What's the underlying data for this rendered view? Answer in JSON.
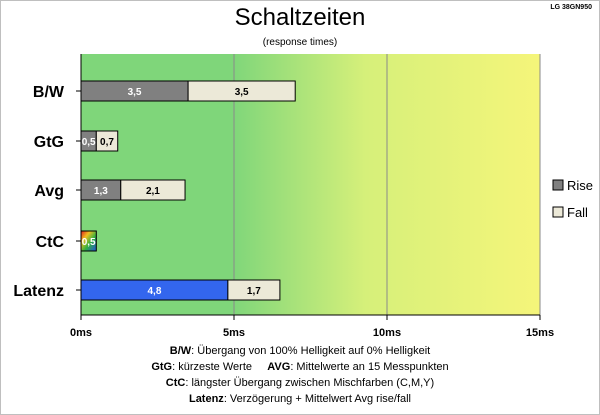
{
  "header": {
    "title": "Schaltzeiten",
    "subtitle": "(response times)",
    "model": "LG 38GN950"
  },
  "colors": {
    "rise": "#808080",
    "fall": "#ece9d8",
    "latency": "#3366ee",
    "grad_start": "#7fd67a",
    "grad_mid": "#d6f07a",
    "grad_end": "#f5f57a"
  },
  "chart_data": {
    "type": "bar",
    "orientation": "horizontal",
    "stacked": true,
    "categories": [
      "B/W",
      "GtG",
      "Avg",
      "CtC",
      "Latenz"
    ],
    "series": [
      {
        "name": "Rise",
        "values": [
          3.5,
          0.5,
          1.3,
          0.5,
          4.8
        ],
        "labels": [
          "3,5",
          "0,5",
          "1,3",
          "0,5",
          "4,8"
        ]
      },
      {
        "name": "Fall",
        "values": [
          3.5,
          0.7,
          2.1,
          null,
          1.7
        ],
        "labels": [
          "3,5",
          "0,7",
          "2,1",
          "",
          "1,7"
        ]
      }
    ],
    "xlim": [
      0,
      15
    ],
    "xticks": [
      "0ms",
      "5ms",
      "10ms",
      "15ms"
    ],
    "grid": true,
    "legend": "right"
  },
  "notes": [
    {
      "key": "B/W",
      "text": ":  Übergang von 100% Helligkeit auf 0% Helligkeit"
    },
    {
      "key": "GtG",
      "text": ": kürzeste  Werte"
    },
    {
      "key": "AVG",
      "text": ": Mittelwerte  an 15 Messpunkten"
    },
    {
      "key": "CtC",
      "text": ": längster Übergang  zwischen Mischfarben  (C,M,Y)"
    },
    {
      "key": "Latenz",
      "text": ": Verzögerung  + Mittelwert Avg rise/fall"
    }
  ]
}
